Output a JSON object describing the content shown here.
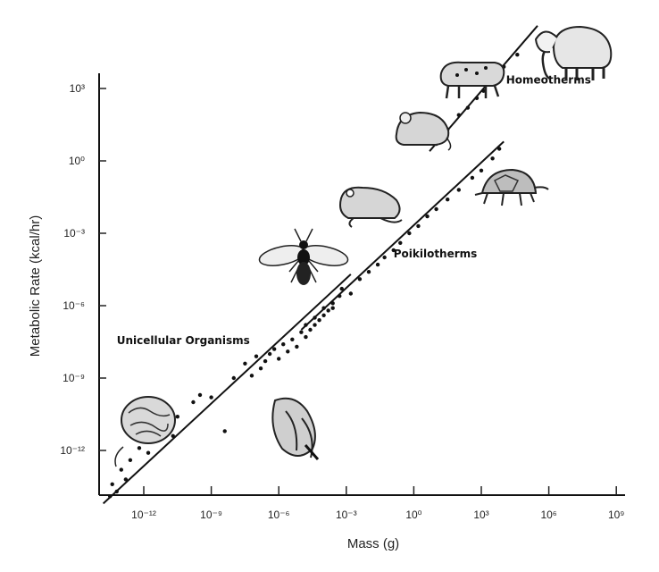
{
  "chart_data": {
    "type": "scatter",
    "title": "",
    "xlabel": "Mass (g)",
    "ylabel": "Metabolic Rate (kcal/hr)",
    "x_scale": "log",
    "y_scale": "log",
    "xlim_exp": [
      -14,
      10
    ],
    "ylim_exp": [
      -14,
      7
    ],
    "x_ticks": [
      {
        "exp": -12,
        "label": "10⁻¹²"
      },
      {
        "exp": -9,
        "label": "10⁻⁹"
      },
      {
        "exp": -6,
        "label": "10⁻⁶"
      },
      {
        "exp": -3,
        "label": "10⁻³"
      },
      {
        "exp": 0,
        "label": "10⁰"
      },
      {
        "exp": 3,
        "label": "10³"
      },
      {
        "exp": 6,
        "label": "10⁶"
      },
      {
        "exp": 9,
        "label": "10⁹"
      }
    ],
    "y_ticks": [
      {
        "exp": 3,
        "label": "10³"
      },
      {
        "exp": 0,
        "label": "10⁰"
      },
      {
        "exp": -3,
        "label": "10⁻³"
      },
      {
        "exp": -6,
        "label": "10⁻⁶"
      },
      {
        "exp": -9,
        "label": "10⁻⁹"
      },
      {
        "exp": -12,
        "label": "10⁻¹²"
      }
    ],
    "grid": false,
    "legend": "none",
    "groups": [
      {
        "label": "Unicellular Organisms",
        "label_at": {
          "x_exp": -13.2,
          "y_exp": -7.6
        },
        "fit": {
          "from": [
            -13.8,
            -14.2
          ],
          "to": [
            -2.8,
            -4.7
          ]
        },
        "points": [
          [
            -13.5,
            -13.9
          ],
          [
            -13.4,
            -13.4
          ],
          [
            -13.2,
            -13.7
          ],
          [
            -13.0,
            -12.8
          ],
          [
            -12.8,
            -13.2
          ],
          [
            -12.6,
            -12.4
          ],
          [
            -12.2,
            -11.9
          ],
          [
            -11.8,
            -12.1
          ],
          [
            -11.5,
            -11.3
          ],
          [
            -11.0,
            -11.0
          ],
          [
            -10.7,
            -11.4
          ],
          [
            -10.5,
            -10.6
          ],
          [
            -9.8,
            -10.0
          ],
          [
            -9.5,
            -9.7
          ],
          [
            -9.0,
            -9.8
          ],
          [
            -8.4,
            -11.2
          ],
          [
            -8.0,
            -9.0
          ],
          [
            -7.5,
            -8.4
          ],
          [
            -7.2,
            -8.9
          ],
          [
            -7.0,
            -8.1
          ],
          [
            -6.8,
            -8.6
          ],
          [
            -6.6,
            -8.3
          ],
          [
            -6.4,
            -8.0
          ],
          [
            -6.2,
            -7.8
          ],
          [
            -6.0,
            -8.2
          ],
          [
            -5.8,
            -7.6
          ],
          [
            -5.6,
            -7.9
          ],
          [
            -5.4,
            -7.4
          ],
          [
            -5.2,
            -7.7
          ],
          [
            -5.0,
            -7.1
          ],
          [
            -4.8,
            -7.3
          ],
          [
            -4.6,
            -7.0
          ],
          [
            -4.4,
            -6.8
          ],
          [
            -4.2,
            -6.6
          ],
          [
            -4.0,
            -6.4
          ],
          [
            -3.8,
            -6.2
          ],
          [
            -3.6,
            -6.1
          ],
          [
            -3.3,
            -5.6
          ]
        ]
      },
      {
        "label": "Poikilotherms",
        "label_at": {
          "x_exp": -0.9,
          "y_exp": -4.0
        },
        "fit": {
          "from": [
            -5.0,
            -7.0
          ],
          "to": [
            4.0,
            0.8
          ]
        },
        "points": [
          [
            -4.8,
            -6.8
          ],
          [
            -4.4,
            -6.5
          ],
          [
            -4.0,
            -6.1
          ],
          [
            -3.6,
            -5.9
          ],
          [
            -3.2,
            -5.3
          ],
          [
            -2.8,
            -5.5
          ],
          [
            -2.4,
            -4.9
          ],
          [
            -2.0,
            -4.6
          ],
          [
            -1.6,
            -4.3
          ],
          [
            -1.3,
            -4.0
          ],
          [
            -0.9,
            -3.7
          ],
          [
            -0.6,
            -3.4
          ],
          [
            -0.2,
            -3.0
          ],
          [
            0.2,
            -2.7
          ],
          [
            0.6,
            -2.3
          ],
          [
            1.0,
            -2.0
          ],
          [
            1.5,
            -1.6
          ],
          [
            2.0,
            -1.2
          ],
          [
            2.6,
            -0.7
          ],
          [
            3.0,
            -0.4
          ],
          [
            3.5,
            0.1
          ],
          [
            3.8,
            0.5
          ]
        ]
      },
      {
        "label": "Homeotherms",
        "label_at": {
          "x_exp": 4.1,
          "y_exp": 3.2
        },
        "fit": {
          "from": [
            0.7,
            0.4
          ],
          "to": [
            5.5,
            5.6
          ]
        },
        "points": [
          [
            1.0,
            0.7
          ],
          [
            1.5,
            1.3
          ],
          [
            2.0,
            1.9
          ],
          [
            2.4,
            2.2
          ],
          [
            2.8,
            2.6
          ],
          [
            3.1,
            2.9
          ],
          [
            3.3,
            3.3
          ],
          [
            3.6,
            3.4
          ],
          [
            4.0,
            3.9
          ],
          [
            4.6,
            4.4
          ]
        ]
      }
    ]
  },
  "icons": [
    "amoeba-icon",
    "protozoan-icon",
    "bee-icon",
    "frog-icon",
    "mouse-icon",
    "turtle-icon",
    "leopard-icon",
    "elephant-icon"
  ]
}
